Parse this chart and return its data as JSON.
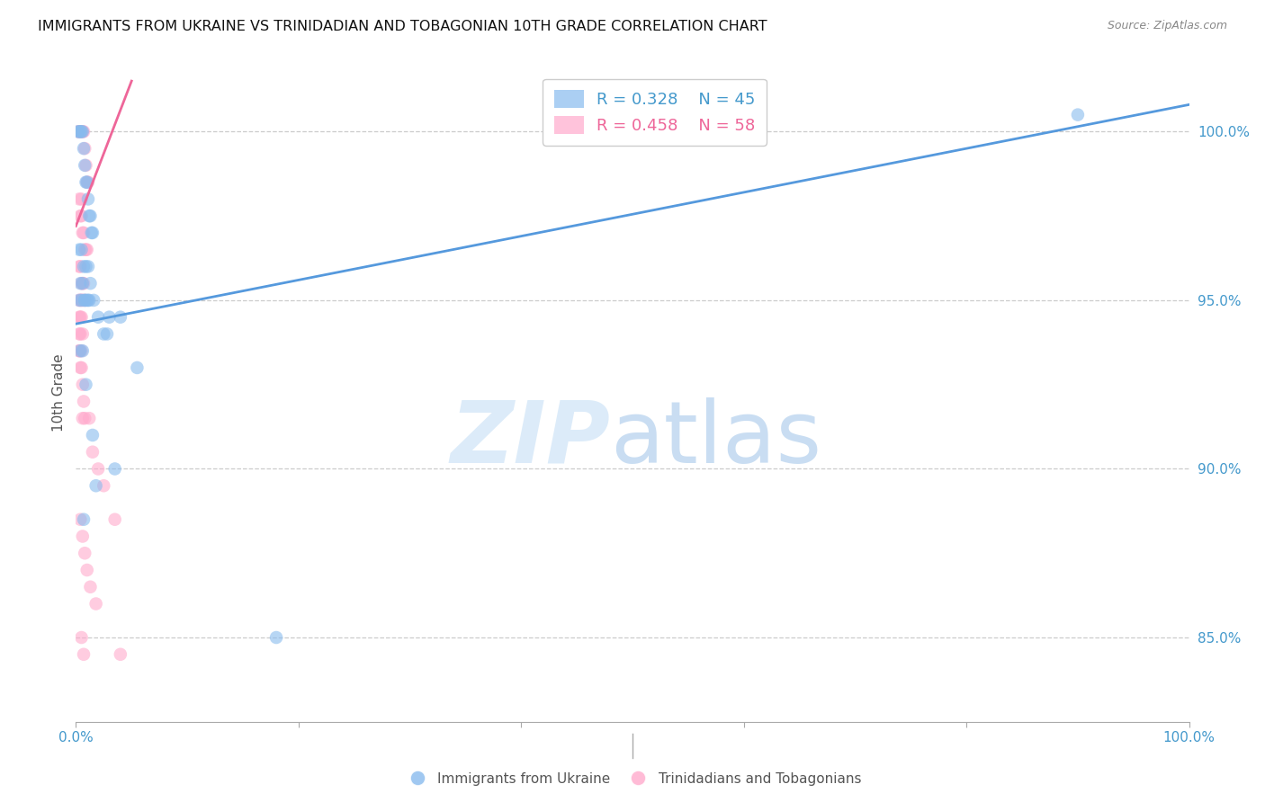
{
  "title": "IMMIGRANTS FROM UKRAINE VS TRINIDADIAN AND TOBAGONIAN 10TH GRADE CORRELATION CHART",
  "source": "Source: ZipAtlas.com",
  "ylabel": "10th Grade",
  "xlim": [
    0.0,
    100.0
  ],
  "ylim": [
    82.5,
    102.0
  ],
  "yticks": [
    85.0,
    90.0,
    95.0,
    100.0
  ],
  "xticks_labels": [
    "0.0%",
    "100.0%"
  ],
  "legend_blue_r": "R = 0.328",
  "legend_blue_n": "N = 45",
  "legend_pink_r": "R = 0.458",
  "legend_pink_n": "N = 58",
  "blue_color": "#88bbee",
  "pink_color": "#ffaacc",
  "blue_line_color": "#5599dd",
  "pink_line_color": "#ee6699",
  "axis_label_color": "#4499cc",
  "title_fontsize": 11.5,
  "source_fontsize": 9,
  "blue_scatter_x": [
    0.2,
    0.3,
    0.4,
    0.5,
    0.6,
    0.7,
    0.8,
    0.9,
    1.0,
    1.1,
    1.2,
    1.3,
    1.4,
    1.5,
    0.3,
    0.5,
    0.7,
    0.9,
    1.1,
    1.3,
    0.4,
    0.6,
    0.8,
    1.0,
    1.2,
    0.3,
    0.5,
    0.8,
    1.1,
    1.6,
    2.0,
    2.5,
    3.0,
    4.0,
    5.5,
    0.4,
    0.6,
    0.9,
    1.5,
    2.8,
    3.5,
    1.8,
    0.7,
    18.0,
    90.0
  ],
  "blue_scatter_y": [
    100.0,
    100.0,
    100.0,
    100.0,
    100.0,
    99.5,
    99.0,
    98.5,
    98.5,
    98.0,
    97.5,
    97.5,
    97.0,
    97.0,
    96.5,
    96.5,
    96.0,
    96.0,
    96.0,
    95.5,
    95.5,
    95.5,
    95.0,
    95.0,
    95.0,
    95.0,
    95.0,
    95.0,
    95.0,
    95.0,
    94.5,
    94.0,
    94.5,
    94.5,
    93.0,
    93.5,
    93.5,
    92.5,
    91.0,
    94.0,
    90.0,
    89.5,
    88.5,
    85.0,
    100.5
  ],
  "pink_scatter_x": [
    0.2,
    0.3,
    0.4,
    0.5,
    0.6,
    0.7,
    0.8,
    0.9,
    1.0,
    1.1,
    0.3,
    0.4,
    0.5,
    0.6,
    0.7,
    0.8,
    0.9,
    1.0,
    0.3,
    0.4,
    0.5,
    0.6,
    0.7,
    0.8,
    0.3,
    0.4,
    0.5,
    0.6,
    0.3,
    0.4,
    0.5,
    0.6,
    0.3,
    0.4,
    0.5,
    0.3,
    0.4,
    0.5,
    0.6,
    0.7,
    0.8,
    1.2,
    1.5,
    2.0,
    2.5,
    3.5,
    0.4,
    0.6,
    0.8,
    1.0,
    1.3,
    1.8,
    0.5,
    0.7,
    4.0,
    0.3,
    0.5,
    0.6
  ],
  "pink_scatter_y": [
    100.0,
    100.0,
    100.0,
    100.0,
    100.0,
    100.0,
    99.5,
    99.0,
    98.5,
    98.5,
    98.0,
    97.5,
    97.5,
    97.0,
    97.0,
    96.5,
    96.5,
    96.5,
    96.0,
    96.0,
    95.5,
    95.5,
    95.5,
    95.0,
    95.0,
    95.0,
    95.0,
    95.0,
    94.5,
    94.5,
    94.5,
    94.0,
    94.0,
    94.0,
    93.5,
    93.5,
    93.0,
    93.0,
    92.5,
    92.0,
    91.5,
    91.5,
    90.5,
    90.0,
    89.5,
    88.5,
    88.5,
    88.0,
    87.5,
    87.0,
    86.5,
    86.0,
    85.0,
    84.5,
    84.5,
    93.5,
    98.0,
    91.5
  ],
  "blue_trendline_x": [
    0.0,
    100.0
  ],
  "blue_trendline_y": [
    94.3,
    100.8
  ],
  "pink_trendline_x": [
    0.0,
    5.0
  ],
  "pink_trendline_y": [
    97.2,
    101.5
  ]
}
